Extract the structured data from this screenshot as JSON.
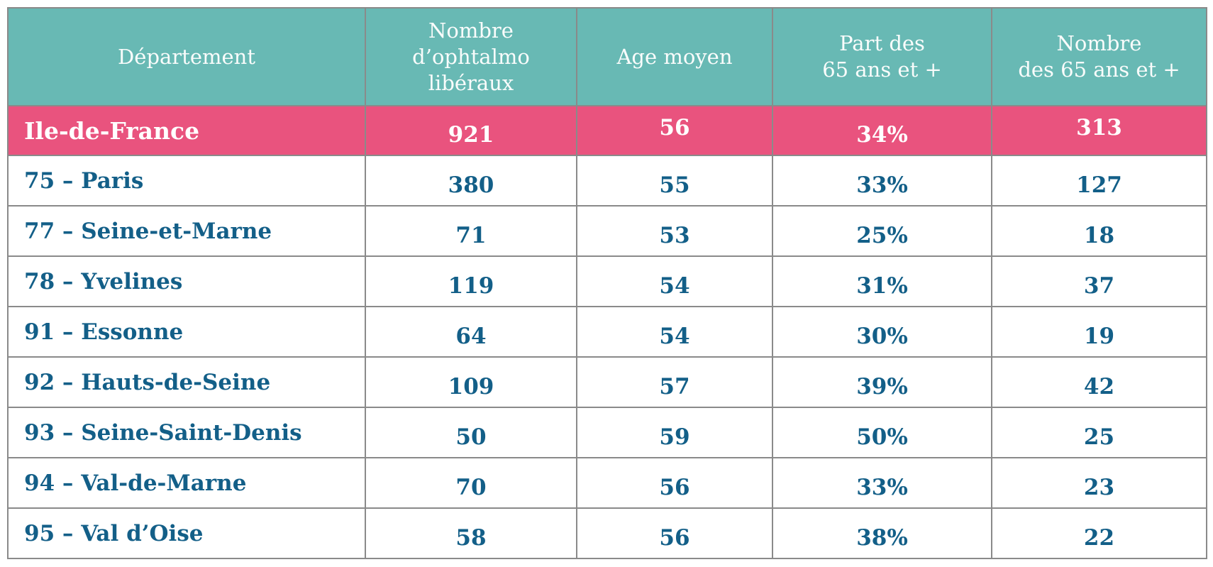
{
  "colors": {
    "teal": "#68b9b4",
    "pink": "#e9537e",
    "blue": "#135f88",
    "border": "#8a8a8a",
    "header-text": "#f9fcfb"
  },
  "table": {
    "columns": [
      {
        "label": "Département"
      },
      {
        "label": "Nombre\nd’ophtalmo\nlibéraux"
      },
      {
        "label": "Age moyen"
      },
      {
        "label": "Part des\n65 ans et +"
      },
      {
        "label": "Nombre\ndes 65 ans et +"
      }
    ],
    "summary": {
      "label": "Ile-de-France",
      "values": [
        "921",
        "56",
        "34%",
        "313"
      ]
    },
    "rows": [
      {
        "label": "75 – Paris",
        "values": [
          "380",
          "55",
          "33%",
          "127"
        ]
      },
      {
        "label": "77 – Seine-et-Marne",
        "values": [
          "71",
          "53",
          "25%",
          "18"
        ]
      },
      {
        "label": "78 – Yvelines",
        "values": [
          "119",
          "54",
          "31%",
          "37"
        ]
      },
      {
        "label": "91 – Essonne",
        "values": [
          "64",
          "54",
          "30%",
          "19"
        ]
      },
      {
        "label": "92 – Hauts-de-Seine",
        "values": [
          "109",
          "57",
          "39%",
          "42"
        ]
      },
      {
        "label": "93 – Seine-Saint-Denis",
        "values": [
          "50",
          "59",
          "50%",
          "25"
        ]
      },
      {
        "label": "94 – Val-de-Marne",
        "values": [
          "70",
          "56",
          "33%",
          "23"
        ]
      },
      {
        "label": "95 – Val d’Oise",
        "values": [
          "58",
          "56",
          "38%",
          "22"
        ]
      }
    ]
  },
  "chart_data": {
    "type": "table",
    "title": "",
    "columns": [
      "Département",
      "Nombre d’ophtalmo libéraux",
      "Age moyen",
      "Part des 65 ans et +",
      "Nombre des 65 ans et +"
    ],
    "rows": [
      [
        "Ile-de-France",
        921,
        56,
        "34%",
        313
      ],
      [
        "75 – Paris",
        380,
        55,
        "33%",
        127
      ],
      [
        "77 – Seine-et-Marne",
        71,
        53,
        "25%",
        18
      ],
      [
        "78 – Yvelines",
        119,
        54,
        "31%",
        37
      ],
      [
        "91 – Essonne",
        64,
        54,
        "30%",
        19
      ],
      [
        "92 – Hauts-de-Seine",
        109,
        57,
        "39%",
        42
      ],
      [
        "93 – Seine-Saint-Denis",
        50,
        59,
        "50%",
        25
      ],
      [
        "94 – Val-de-Marne",
        70,
        56,
        "33%",
        23
      ],
      [
        "95 – Val d’Oise",
        58,
        56,
        "38%",
        22
      ]
    ],
    "layout_hints": {
      "header_background": "#68b9b4",
      "summary_row_background": "#e9537e",
      "body_text_color": "#135f88",
      "grid": true
    }
  }
}
